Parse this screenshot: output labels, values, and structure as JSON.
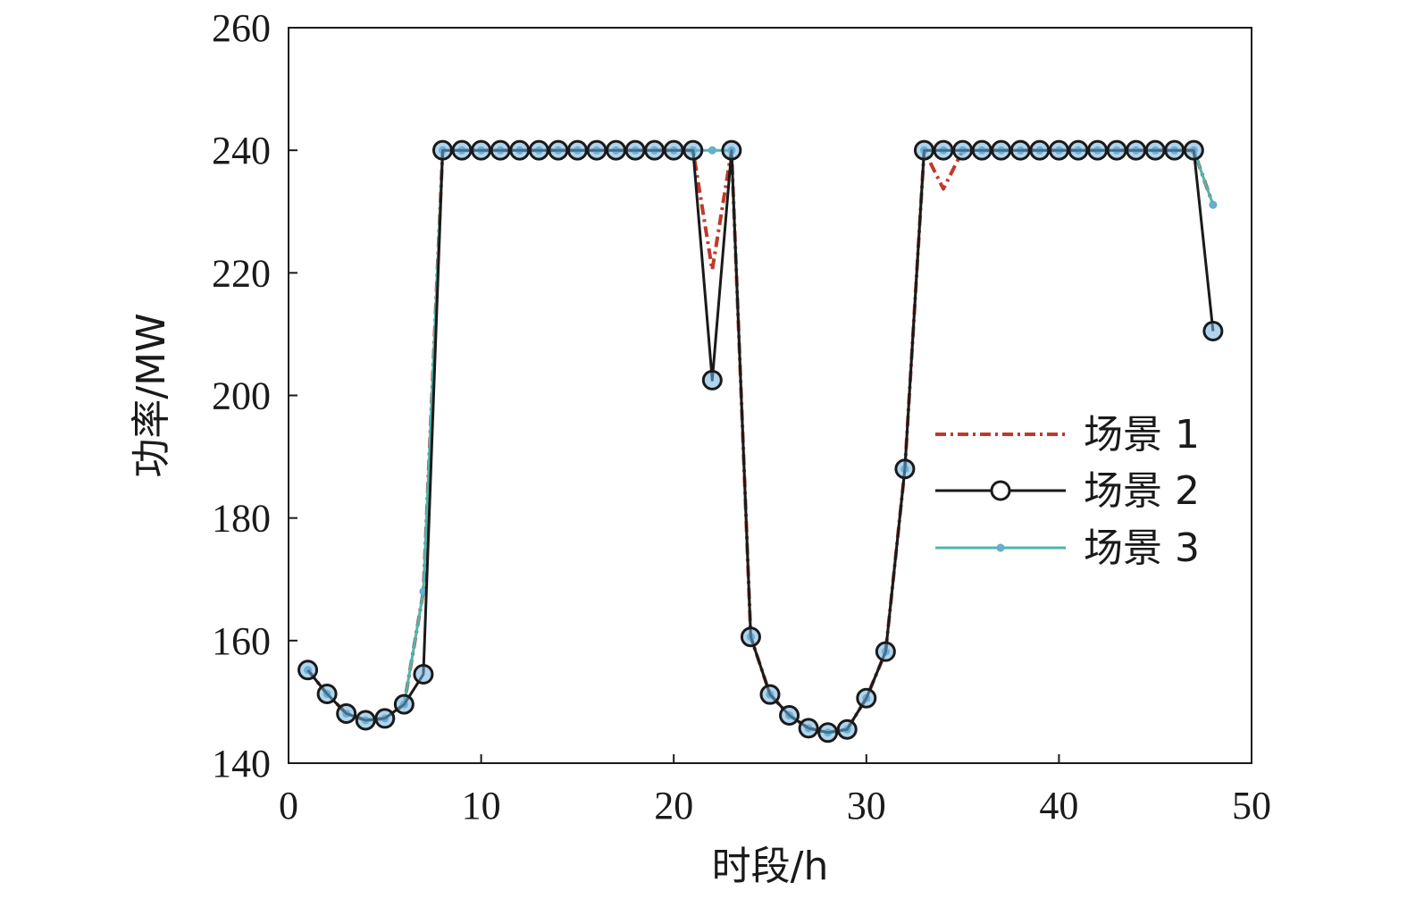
{
  "chart_data": {
    "type": "line",
    "xlabel": "时段/h",
    "ylabel": "功率/MW",
    "xlim": [
      0,
      50
    ],
    "ylim": [
      140,
      260
    ],
    "xticks": [
      "0",
      "10",
      "20",
      "30",
      "40",
      "50"
    ],
    "yticks": [
      "140",
      "160",
      "180",
      "200",
      "220",
      "240",
      "260"
    ],
    "grid": false,
    "legend_position": "right-middle",
    "x": [
      1,
      2,
      3,
      4,
      5,
      6,
      7,
      8,
      9,
      10,
      11,
      12,
      13,
      14,
      15,
      16,
      17,
      18,
      19,
      20,
      21,
      22,
      23,
      24,
      25,
      26,
      27,
      28,
      29,
      30,
      31,
      32,
      33,
      34,
      35,
      36,
      37,
      38,
      39,
      40,
      41,
      42,
      43,
      44,
      45,
      46,
      47,
      48
    ],
    "series": [
      {
        "name": "场景 1",
        "color": "#c0392b",
        "style": "dash-dot",
        "marker": "none",
        "values": [
          155.2,
          151.3,
          148.1,
          147.0,
          147.3,
          149.6,
          168.0,
          240,
          240,
          240,
          240,
          240,
          240,
          240,
          240,
          240,
          240,
          240,
          240,
          240,
          240,
          220.5,
          240,
          160.6,
          151.2,
          147.8,
          145.7,
          145.0,
          145.5,
          150.6,
          158.2,
          188.0,
          240,
          233.7,
          240,
          240,
          240,
          240,
          240,
          240,
          240,
          240,
          240,
          240,
          240,
          240,
          240,
          231.1
        ]
      },
      {
        "name": "场景 2",
        "color": "#1a1a1a",
        "style": "solid",
        "marker": "circle",
        "values": [
          155.2,
          151.3,
          148.1,
          147.0,
          147.3,
          149.6,
          154.5,
          240,
          240,
          240,
          240,
          240,
          240,
          240,
          240,
          240,
          240,
          240,
          240,
          240,
          240,
          202.5,
          240,
          160.6,
          151.2,
          147.8,
          145.7,
          145.0,
          145.5,
          150.6,
          158.2,
          188.0,
          240,
          240,
          240,
          240,
          240,
          240,
          240,
          240,
          240,
          240,
          240,
          240,
          240,
          240,
          240,
          210.5
        ]
      },
      {
        "name": "场景 3",
        "color": "#4db6ac",
        "style": "solid",
        "marker": "small-x",
        "values": [
          155.2,
          151.3,
          148.1,
          147.0,
          147.3,
          149.6,
          168.0,
          240,
          240,
          240,
          240,
          240,
          240,
          240,
          240,
          240,
          240,
          240,
          240,
          240,
          240,
          240,
          240,
          160.6,
          151.2,
          147.8,
          145.7,
          145.0,
          145.5,
          150.6,
          158.2,
          188.0,
          240,
          240,
          240,
          240,
          240,
          240,
          240,
          240,
          240,
          240,
          240,
          240,
          240,
          240,
          240,
          231.1
        ]
      }
    ]
  }
}
